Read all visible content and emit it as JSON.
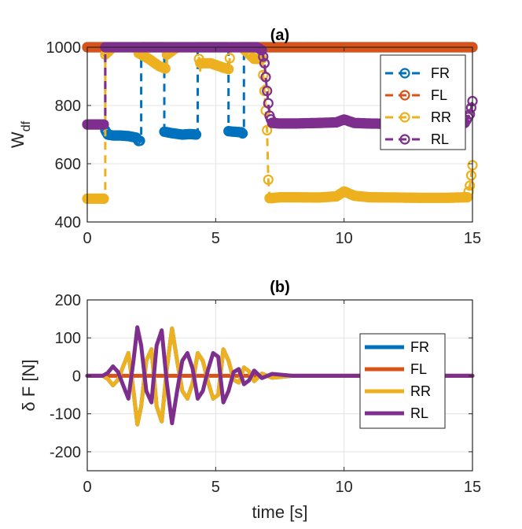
{
  "chart_data": [
    {
      "type": "line",
      "title": "(a)",
      "ylabel_main": "W",
      "ylabel_sub": "df",
      "xlabel": "",
      "xlim": [
        0,
        15
      ],
      "ylim": [
        400,
        1000
      ],
      "xticks": [
        0,
        5,
        10,
        15
      ],
      "yticks": [
        400,
        600,
        800,
        1000
      ],
      "grid": true,
      "legend_position": "top-right",
      "marker": "open-circle",
      "line_style": "dashed",
      "series": [
        {
          "name": "FR",
          "color": "#0072BD",
          "x": [
            0,
            0.7,
            0.7,
            0.8,
            1.0,
            1.3,
            1.6,
            1.9,
            2.0,
            2.1,
            2.1,
            2.5,
            2.9,
            3.0,
            3.0,
            3.3,
            3.7,
            4.0,
            4.3,
            4.3,
            4.7,
            5.1,
            5.5,
            5.5,
            5.7,
            6.0,
            6.1,
            6.1,
            6.5,
            7.0,
            7.0,
            9.0,
            11.0,
            13.0,
            15.0
          ],
          "y": [
            1000,
            1000,
            715,
            700,
            697,
            697,
            695,
            690,
            678,
            680,
            1000,
            1000,
            1000,
            1000,
            710,
            705,
            700,
            702,
            700,
            1000,
            1000,
            1000,
            1000,
            712,
            710,
            708,
            700,
            1000,
            1000,
            1000,
            1000,
            1000,
            1000,
            1000,
            1000
          ]
        },
        {
          "name": "FL",
          "color": "#D95319",
          "x": [
            0,
            3,
            6,
            9,
            12,
            15
          ],
          "y": [
            1000,
            1000,
            1000,
            1000,
            1000,
            1000
          ]
        },
        {
          "name": "RR",
          "color": "#EDB120",
          "x": [
            0,
            0.3,
            0.7,
            0.7,
            1.0,
            1.5,
            2.0,
            2.0,
            2.4,
            2.8,
            3.1,
            3.1,
            3.5,
            4.0,
            4.3,
            4.4,
            4.4,
            4.8,
            5.3,
            5.5,
            5.6,
            6.0,
            6.2,
            6.5,
            6.8,
            6.9,
            7.0,
            7.05,
            7.1,
            7.2,
            7.5,
            8.0,
            9.0,
            9.7,
            10.0,
            10.4,
            11.0,
            12.0,
            13.0,
            14.0,
            14.8,
            14.9,
            15.0
          ],
          "y": [
            480,
            480,
            480,
            975,
            1000,
            1000,
            1000,
            980,
            960,
            935,
            925,
            975,
            1000,
            1000,
            1000,
            920,
            945,
            945,
            930,
            925,
            1000,
            1000,
            985,
            960,
            960,
            850,
            715,
            545,
            482,
            482,
            485,
            485,
            484,
            488,
            505,
            490,
            485,
            484,
            483,
            483,
            485,
            525,
            595
          ]
        },
        {
          "name": "RL",
          "color": "#7E2F8E",
          "x": [
            0,
            0.3,
            0.7,
            0.7,
            1.0,
            2.0,
            3.0,
            4.0,
            5.0,
            6.0,
            6.6,
            6.8,
            6.9,
            7.0,
            7.1,
            7.2,
            7.5,
            8.0,
            9.0,
            9.7,
            10.0,
            10.4,
            11.0,
            12.0,
            13.0,
            14.0,
            14.7,
            14.9,
            15.0
          ],
          "y": [
            735,
            735,
            735,
            1000,
            1000,
            1000,
            1000,
            1000,
            1000,
            1000,
            1000,
            990,
            945,
            850,
            765,
            740,
            738,
            738,
            740,
            742,
            752,
            740,
            738,
            737,
            736,
            736,
            740,
            770,
            815
          ]
        }
      ]
    },
    {
      "type": "line",
      "title": "(b)",
      "ylabel": "δ F [N]",
      "xlabel": "time [s]",
      "xlim": [
        0,
        15
      ],
      "ylim": [
        -250,
        200
      ],
      "xticks": [
        0,
        5,
        10,
        15
      ],
      "yticks": [
        -200,
        -100,
        0,
        100,
        200
      ],
      "grid": true,
      "legend_position": "right",
      "line_style": "solid",
      "series": [
        {
          "name": "FR",
          "color": "#0072BD",
          "x": [
            0,
            0.6,
            0.8,
            1.0,
            1.2,
            1.4,
            1.6,
            1.8,
            1.95,
            2.1,
            2.3,
            2.5,
            2.7,
            2.9,
            3.1,
            3.3,
            3.5,
            3.7,
            3.9,
            4.1,
            4.3,
            4.5,
            4.7,
            4.9,
            5.1,
            5.3,
            5.5,
            5.7,
            5.9,
            6.1,
            6.3,
            6.5,
            6.8,
            7.2,
            8.0,
            15.0
          ],
          "y": [
            0,
            0,
            -8,
            -25,
            -10,
            25,
            60,
            -40,
            -128,
            -80,
            40,
            70,
            -80,
            -120,
            20,
            125,
            40,
            -40,
            -60,
            -20,
            60,
            40,
            -15,
            -60,
            -50,
            70,
            40,
            -10,
            -18,
            22,
            12,
            -14,
            6,
            -5,
            0,
            0
          ]
        },
        {
          "name": "FL",
          "color": "#D95319",
          "x": [
            0,
            15
          ],
          "y": [
            0,
            0
          ]
        },
        {
          "name": "RR",
          "color": "#EDB120",
          "x": [
            0,
            0.6,
            0.8,
            1.0,
            1.2,
            1.4,
            1.6,
            1.8,
            1.95,
            2.1,
            2.3,
            2.5,
            2.7,
            2.9,
            3.1,
            3.3,
            3.5,
            3.7,
            3.9,
            4.1,
            4.3,
            4.5,
            4.7,
            4.9,
            5.1,
            5.3,
            5.5,
            5.7,
            5.9,
            6.1,
            6.3,
            6.5,
            6.8,
            7.2,
            8.0,
            15.0
          ],
          "y": [
            0,
            0,
            -8,
            -25,
            -10,
            25,
            60,
            -40,
            -128,
            -80,
            40,
            70,
            -80,
            -120,
            20,
            125,
            40,
            -40,
            -60,
            -20,
            60,
            40,
            -15,
            -60,
            -50,
            70,
            40,
            -10,
            -18,
            22,
            12,
            -14,
            6,
            -5,
            0,
            0
          ]
        },
        {
          "name": "RL",
          "color": "#7E2F8E",
          "x": [
            0,
            0.6,
            0.8,
            1.0,
            1.2,
            1.4,
            1.6,
            1.8,
            1.95,
            2.1,
            2.3,
            2.5,
            2.7,
            2.9,
            3.1,
            3.3,
            3.5,
            3.7,
            3.9,
            4.1,
            4.3,
            4.5,
            4.7,
            4.9,
            5.1,
            5.3,
            5.5,
            5.7,
            5.9,
            6.1,
            6.3,
            6.5,
            6.8,
            7.2,
            8.0,
            15.0
          ],
          "y": [
            0,
            0,
            8,
            25,
            10,
            -25,
            -60,
            40,
            128,
            80,
            -40,
            -70,
            80,
            120,
            -20,
            -125,
            -40,
            40,
            60,
            20,
            -60,
            -40,
            15,
            60,
            50,
            -70,
            -40,
            10,
            18,
            -22,
            -12,
            14,
            -6,
            5,
            0,
            0
          ]
        }
      ]
    }
  ]
}
